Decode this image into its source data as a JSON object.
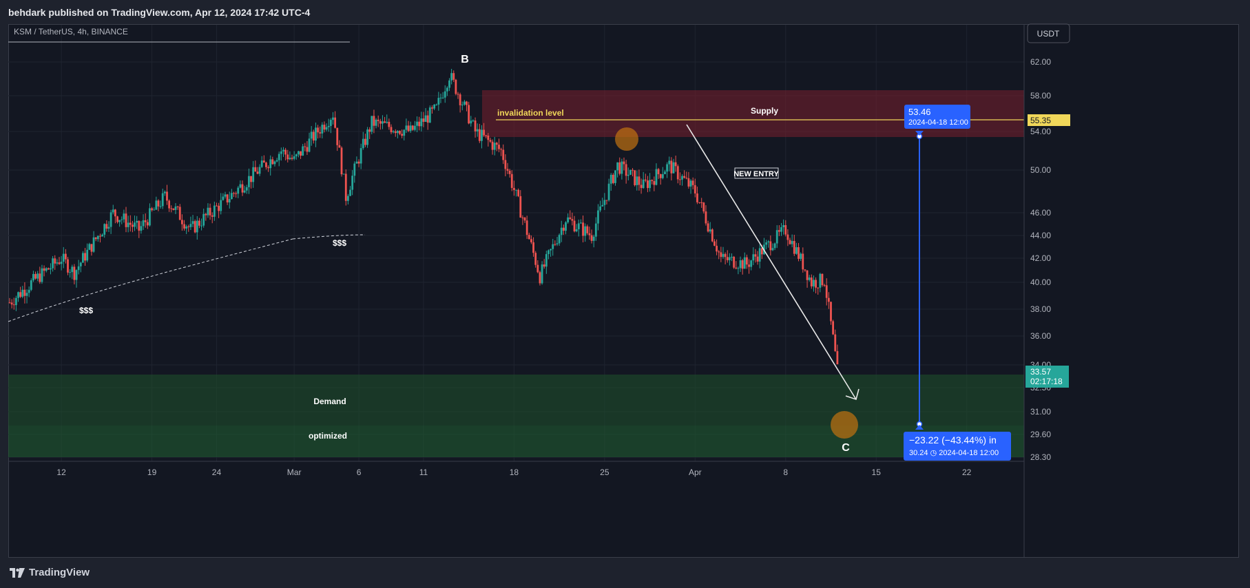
{
  "header": {
    "publish_line": "behdark published on TradingView.com, Apr 12, 2024 17:42 UTC-4"
  },
  "symbol": {
    "title": "KSM / TetherUS, 4h, BINANCE"
  },
  "currency_button": {
    "label": "USDT"
  },
  "brand": {
    "name": "TradingView",
    "logo_icon": "tradingview-logo-icon"
  },
  "colors": {
    "up": "#26a69a",
    "down": "#ef5350",
    "supply_zone": "#7a1f2e",
    "demand_zone": "#1e4d2b",
    "invalidation_line": "#f0d75a",
    "measure": "#2962ff",
    "last_price": "#26a69a"
  },
  "annotations": {
    "wave_b": "B",
    "wave_c": "C",
    "supply": "Supply",
    "invalidation": "invalidation level",
    "new_entry": "NEW ENTRY",
    "demand": "Demand",
    "optimized": "optimized",
    "liquidity_low": "$$$",
    "liquidity_mid": "$$$"
  },
  "price_labels": {
    "invalidation_price": "55.35",
    "last_price": "33.57",
    "countdown": "02:17:18"
  },
  "measure": {
    "start_price": "53.46",
    "start_date": "2024-04-18 12:00",
    "change_text": "−23.22 (−43.44%) in",
    "end_text": "30.24 ◷ 2024-04-18  12:00"
  },
  "chart_data": {
    "type": "candlestick",
    "title": "KSM / TetherUS, 4h, BINANCE",
    "y_scale": "log",
    "ylim": [
      28.0,
      64.0
    ],
    "y_ticks": [
      "62.00",
      "58.00",
      "54.00",
      "50.00",
      "46.00",
      "44.00",
      "42.00",
      "40.00",
      "38.00",
      "36.00",
      "34.00",
      "32.50",
      "31.00",
      "29.60",
      "28.30"
    ],
    "x_ticks": [
      "12",
      "19",
      "24",
      "Mar",
      "6",
      "11",
      "18",
      "25",
      "Apr",
      "8",
      "15",
      "22"
    ],
    "price_path": [
      [
        "2024-02-08",
        38.5
      ],
      [
        "2024-02-12",
        42.0
      ],
      [
        "2024-02-13",
        40.8
      ],
      [
        "2024-02-16",
        46.0
      ],
      [
        "2024-02-18",
        44.5
      ],
      [
        "2024-02-20",
        47.5
      ],
      [
        "2024-02-22",
        44.5
      ],
      [
        "2024-02-25",
        47.5
      ],
      [
        "2024-02-29",
        52.0
      ],
      [
        "2024-03-01",
        51.0
      ],
      [
        "2024-03-04",
        56.0
      ],
      [
        "2024-03-05",
        47.5
      ],
      [
        "2024-03-07",
        55.0
      ],
      [
        "2024-03-10",
        54.0
      ],
      [
        "2024-03-12",
        56.5
      ],
      [
        "2024-03-13",
        60.5
      ],
      [
        "2024-03-15",
        54.0
      ],
      [
        "2024-03-17",
        52.0
      ],
      [
        "2024-03-20",
        40.5
      ],
      [
        "2024-03-22",
        45.5
      ],
      [
        "2024-03-24",
        44.0
      ],
      [
        "2024-03-26",
        50.5
      ],
      [
        "2024-03-28",
        48.5
      ],
      [
        "2024-03-30",
        50.5
      ],
      [
        "2024-04-01",
        48.0
      ],
      [
        "2024-04-03",
        42.0
      ],
      [
        "2024-04-05",
        41.5
      ],
      [
        "2024-04-07",
        43.5
      ],
      [
        "2024-04-08",
        44.5
      ],
      [
        "2024-04-10",
        40.0
      ],
      [
        "2024-04-11",
        40.2
      ],
      [
        "2024-04-12",
        33.57
      ]
    ],
    "zones": [
      {
        "name": "Supply",
        "from": 53.5,
        "to": 58.5
      },
      {
        "name": "Demand",
        "from": 28.6,
        "to": 33.3
      },
      {
        "name": "optimized",
        "from": 28.6,
        "to": 30.2
      }
    ],
    "invalidation_level": 55.35,
    "measure": {
      "start": 53.46,
      "end": 30.24,
      "change": -23.22,
      "change_pct": -43.44,
      "date": "2024-04-18 12:00"
    }
  }
}
